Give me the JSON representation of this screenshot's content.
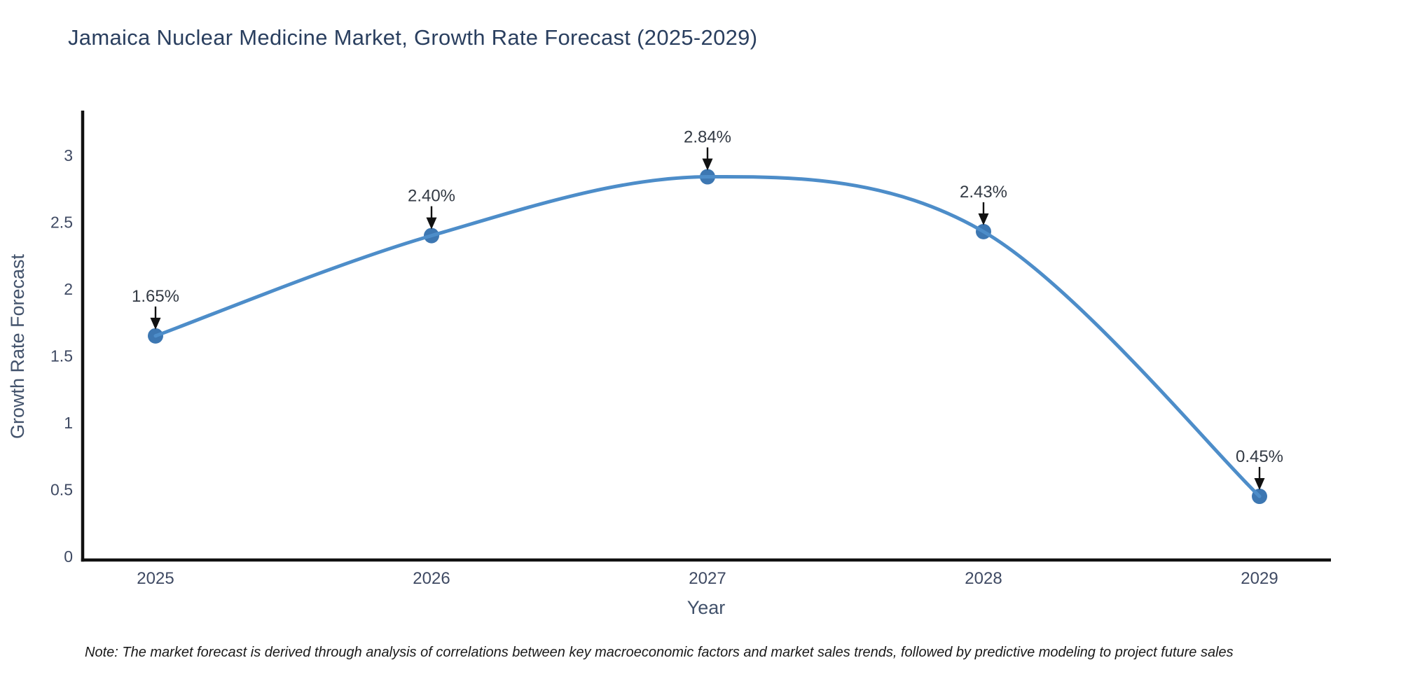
{
  "page": {
    "background": "#ffffff",
    "note": "Note: The market forecast is derived through analysis of correlations between key macroeconomic factors and market sales trends, followed by predictive modeling to project future sales"
  },
  "chart_data": {
    "type": "line",
    "title": "Jamaica Nuclear Medicine Market, Growth Rate Forecast (2025-2029)",
    "xlabel": "Year",
    "ylabel": "Growth Rate Forecast",
    "x": [
      2025,
      2026,
      2027,
      2028,
      2029
    ],
    "series": [
      {
        "name": "Growth Rate Forecast",
        "values": [
          1.65,
          2.4,
          2.84,
          2.43,
          0.45
        ],
        "point_labels": [
          "1.65%",
          "2.40%",
          "2.84%",
          "2.43%",
          "0.45%"
        ]
      }
    ],
    "yticks": [
      0,
      0.5,
      1,
      1.5,
      2,
      2.5,
      3
    ],
    "ylim": [
      0,
      3.34
    ],
    "grid": false,
    "legend": "none",
    "line_shape": "spline",
    "marker": "circle",
    "annotation_arrows": "down",
    "colors": {
      "line": "#4d8dc9",
      "marker": "#3d77b2",
      "axis": "#111111",
      "tick_label": "#3f4a63",
      "axis_title": "#42526b",
      "title": "#2a3f5f",
      "annotation": "#333a44",
      "arrow": "#111111",
      "note_text": "#1a1a1a"
    }
  }
}
